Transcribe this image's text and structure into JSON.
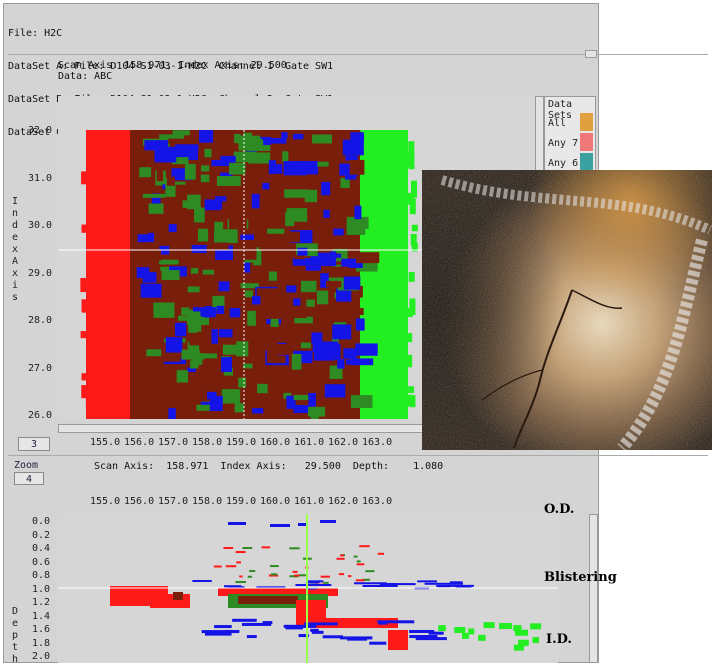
{
  "header": {
    "file": "File: H2C",
    "datasets": [
      "DataSet A: File: D104-S1-03-1-H2C  Channel 1  Gate SW1",
      "DataSet B: File: D104-S1-03-1-H2C  Channel 2  Gate SW1",
      "DataSet C: File: D104-S1-03-1-H2C  Channel 4  Gate SW2"
    ]
  },
  "cscan": {
    "readout_line1": "Scan Axis: 158.971, Index Axis: 29.500",
    "readout_line2": "Data: ABC",
    "y_axis_title": "Index Axis",
    "y_ticks": [
      "32.0",
      "31.0",
      "30.0",
      "29.0",
      "28.0",
      "27.0",
      "26.0"
    ],
    "x_ticks": [
      "155.0",
      "156.0",
      "157.0",
      "158.0",
      "159.0",
      "160.0",
      "161.0",
      "162.0",
      "163.0"
    ],
    "page_button": "3",
    "cursor": {
      "scan": 158.971,
      "index": 29.5
    }
  },
  "legend": {
    "title": "Data Sets",
    "items": [
      {
        "label": "All",
        "color": "#e0a040"
      },
      {
        "label": "Any 7",
        "color": "#f07878"
      },
      {
        "label": "Any 6",
        "color": "#3aa0a0"
      }
    ]
  },
  "bscan": {
    "zoom_label": "Zoom",
    "zoom_value": "4",
    "readout": "Scan Axis:  158.971  Index Axis:   29.500  Depth:    1.080",
    "y_axis_title": "Depth",
    "y_ticks": [
      "0.0",
      "0.2",
      "0.4",
      "0.6",
      "0.8",
      "1.0",
      "1.2",
      "1.4",
      "1.6",
      "1.8",
      "2.0"
    ],
    "x_ticks": [
      "155.0",
      "156.0",
      "157.0",
      "158.0",
      "159.0",
      "160.0",
      "161.0",
      "162.0",
      "163.0"
    ]
  },
  "annotations": {
    "od": "O.D.",
    "blistering": "Blistering",
    "id": "I.D."
  },
  "colors": {
    "red": "#ff1a1a",
    "brown": "#7a1e0c",
    "blue": "#1414e6",
    "green": "#2e8a22",
    "bright_green": "#22ee22"
  }
}
